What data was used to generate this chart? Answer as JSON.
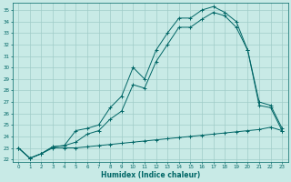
{
  "xlabel": "Humidex (Indice chaleur)",
  "bg_color": "#c8eae6",
  "grid_color": "#a0ccc8",
  "line_color": "#006666",
  "xlim": [
    -0.5,
    23.5
  ],
  "ylim": [
    21.8,
    35.6
  ],
  "yticks": [
    22,
    23,
    24,
    25,
    26,
    27,
    28,
    29,
    30,
    31,
    32,
    33,
    34,
    35
  ],
  "xticks": [
    0,
    1,
    2,
    3,
    4,
    5,
    6,
    7,
    8,
    9,
    10,
    11,
    12,
    13,
    14,
    15,
    16,
    17,
    18,
    19,
    20,
    21,
    22,
    23
  ],
  "line1_x": [
    0,
    1,
    2,
    3,
    4,
    5,
    6,
    7,
    8,
    9,
    10,
    11,
    12,
    13,
    14,
    15,
    16,
    17,
    18,
    19,
    20,
    21,
    22,
    23
  ],
  "line1_y": [
    23.0,
    22.1,
    22.5,
    23.1,
    23.2,
    24.5,
    24.7,
    25.0,
    26.5,
    27.5,
    30.0,
    29.0,
    31.5,
    33.0,
    34.3,
    34.3,
    35.0,
    35.3,
    34.8,
    34.0,
    31.5,
    27.0,
    26.7,
    24.7
  ],
  "line2_x": [
    0,
    1,
    2,
    3,
    4,
    5,
    6,
    7,
    8,
    9,
    10,
    11,
    12,
    13,
    14,
    15,
    16,
    17,
    18,
    19,
    20,
    21,
    22,
    23
  ],
  "line2_y": [
    23.0,
    22.1,
    22.5,
    23.1,
    23.2,
    23.5,
    24.2,
    24.5,
    25.5,
    26.2,
    28.5,
    28.2,
    30.5,
    32.0,
    33.5,
    33.5,
    34.2,
    34.8,
    34.5,
    33.5,
    31.5,
    26.7,
    26.5,
    24.5
  ],
  "line3_x": [
    0,
    1,
    2,
    3,
    4,
    5,
    6,
    7,
    8,
    9,
    10,
    11,
    12,
    13,
    14,
    15,
    16,
    17,
    18,
    19,
    20,
    21,
    22,
    23
  ],
  "line3_y": [
    23.0,
    22.1,
    22.5,
    23.0,
    23.0,
    23.0,
    23.1,
    23.2,
    23.3,
    23.4,
    23.5,
    23.6,
    23.7,
    23.8,
    23.9,
    24.0,
    24.1,
    24.2,
    24.3,
    24.4,
    24.5,
    24.6,
    24.8,
    24.5
  ]
}
